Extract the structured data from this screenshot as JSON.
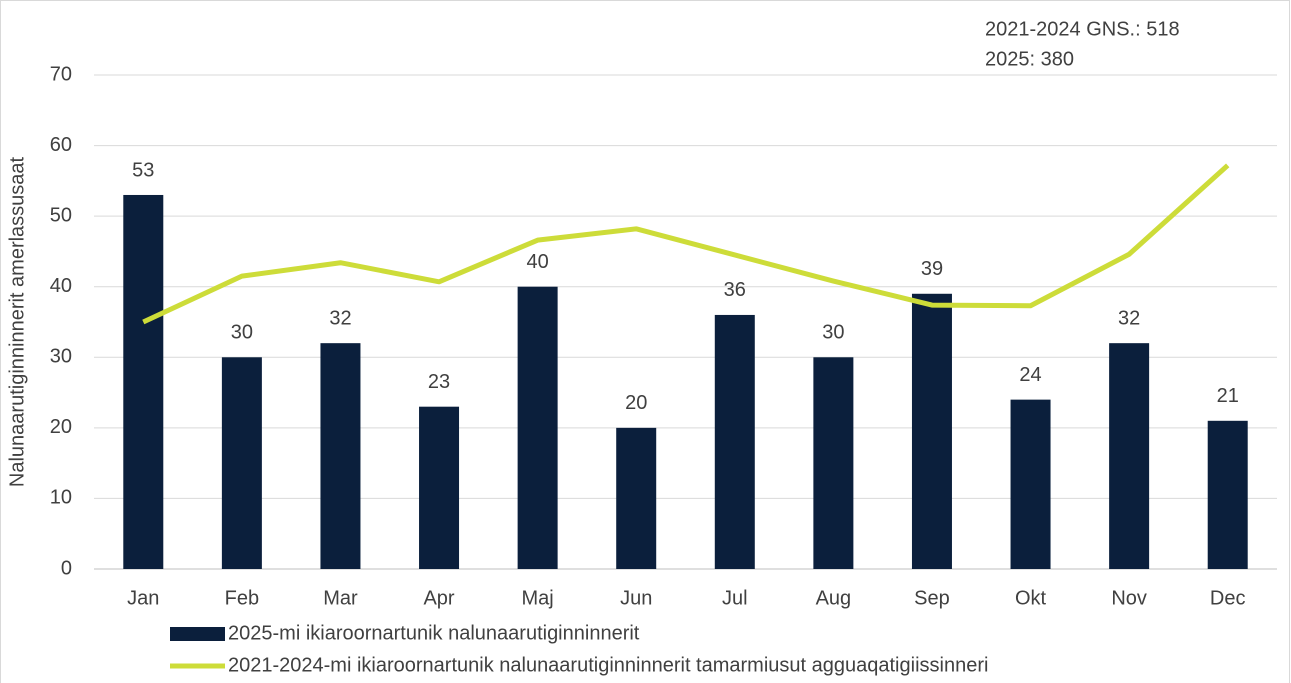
{
  "chart_data": {
    "type": "combo",
    "y_label": "Nalunaarutiginninnerit amerlassusaat",
    "annotations": [
      "2021-2024 GNS.: 518",
      "2025: 380"
    ],
    "categories": [
      "Jan",
      "Feb",
      "Mar",
      "Apr",
      "Maj",
      "Jun",
      "Jul",
      "Aug",
      "Sep",
      "Okt",
      "Nov",
      "Dec"
    ],
    "series": [
      {
        "name": "2025-mi ikiaroornartunik nalunaarutiginninnerit",
        "type": "bar",
        "color": "#0b1f3c",
        "values": [
          53,
          30,
          32,
          23,
          40,
          20,
          36,
          30,
          39,
          24,
          32,
          21
        ]
      },
      {
        "name": "2021-2024-mi ikiaroornartunik nalunaarutiginninnerit tamarmiusut agguaqatigiissinneri",
        "type": "line",
        "color": "#cddc39",
        "values": [
          35.0,
          41.5,
          43.4,
          40.7,
          46.6,
          48.2,
          44.5,
          40.8,
          37.4,
          37.3,
          44.6,
          57.2
        ]
      }
    ],
    "ylim": [
      0,
      70
    ],
    "yticks": [
      0,
      10,
      20,
      30,
      40,
      50,
      60,
      70
    ],
    "grid": true,
    "legend": "bottom"
  }
}
